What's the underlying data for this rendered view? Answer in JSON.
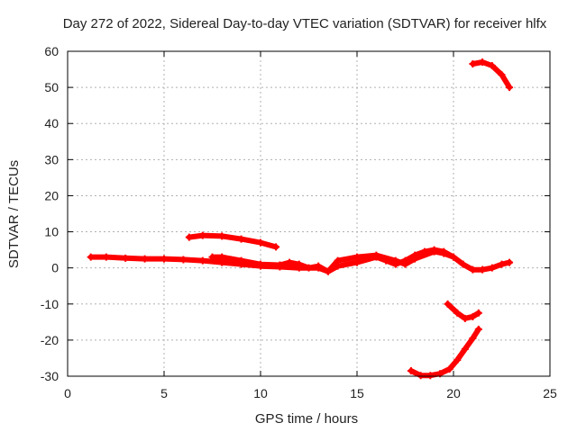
{
  "chart_data": {
    "type": "scatter",
    "title": "Day 272 of 2022, Sidereal Day-to-day VTEC variation (SDTVAR) for receiver hlfx",
    "xlabel": "GPS time / hours",
    "ylabel": "SDTVAR / TECUs",
    "xlim": [
      0,
      25
    ],
    "ylim": [
      -30,
      60
    ],
    "xticks": [
      0,
      5,
      10,
      15,
      20,
      25
    ],
    "yticks": [
      -30,
      -20,
      -10,
      0,
      10,
      20,
      30,
      40,
      50,
      60
    ],
    "grid": true,
    "marker": "plus",
    "colors": {
      "series": "#ff0000",
      "grid": "#b0b0b0",
      "axis": "#000000"
    },
    "series": [
      {
        "x": [
          1.2,
          2.0,
          3.0,
          4.0,
          5.0,
          6.0,
          7.0,
          8.0,
          9.0,
          10.0,
          11.0,
          12.0,
          13.0,
          13.5,
          14.0,
          15.0,
          16.0,
          16.5,
          17.0,
          17.5,
          18.0,
          18.5,
          19.0,
          19.5,
          20.0,
          20.5,
          21.0,
          21.5,
          22.0,
          22.5,
          22.9
        ],
        "y": [
          3.0,
          3.0,
          2.7,
          2.5,
          2.5,
          2.3,
          2.0,
          1.5,
          1.0,
          0.5,
          0.3,
          0.0,
          0.0,
          -1.0,
          0.5,
          1.5,
          3.0,
          2.0,
          1.0,
          2.0,
          3.5,
          4.5,
          5.0,
          4.5,
          3.0,
          1.0,
          -0.5,
          -0.5,
          0.0,
          1.0,
          1.5
        ]
      },
      {
        "x": [
          7.5,
          8.0,
          9.0,
          10.0,
          11.0,
          11.5,
          12.0,
          12.5,
          13.0,
          13.5,
          14.0,
          15.0,
          16.0,
          17.0,
          17.5,
          18.0,
          19.0,
          19.5,
          20.0
        ],
        "y": [
          3.0,
          3.0,
          2.0,
          1.0,
          0.8,
          1.5,
          1.0,
          0.0,
          0.5,
          -1.0,
          2.0,
          3.0,
          3.5,
          2.0,
          1.0,
          2.5,
          4.5,
          4.0,
          3.0
        ]
      },
      {
        "x": [
          6.3,
          7.0,
          8.0,
          9.0,
          10.0,
          10.8
        ],
        "y": [
          8.5,
          9.0,
          8.8,
          8.0,
          7.0,
          5.8
        ]
      },
      {
        "x": [
          21.0,
          21.5,
          22.0,
          22.5,
          22.9
        ],
        "y": [
          56.5,
          57.0,
          56.0,
          53.5,
          50.0
        ]
      },
      {
        "x": [
          19.7,
          20.2,
          20.6,
          21.0,
          21.3
        ],
        "y": [
          -10.0,
          -12.5,
          -14.0,
          -13.5,
          -12.5
        ]
      },
      {
        "x": [
          17.8,
          18.3,
          18.8,
          19.3,
          19.8,
          20.2,
          20.6,
          21.0,
          21.3
        ],
        "y": [
          -28.5,
          -29.8,
          -29.8,
          -29.3,
          -28.0,
          -25.5,
          -22.5,
          -19.5,
          -17.0
        ]
      }
    ]
  }
}
